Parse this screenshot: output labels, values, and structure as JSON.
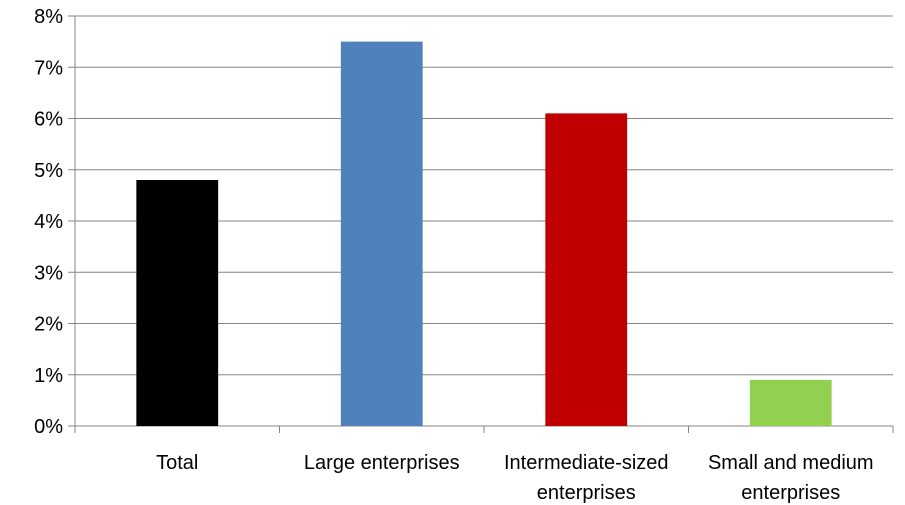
{
  "chart_data": {
    "type": "bar",
    "categories": [
      [
        "Total"
      ],
      [
        "Large enterprises"
      ],
      [
        "Intermediate-sized",
        "enterprises"
      ],
      [
        "Small and medium",
        "enterprises"
      ]
    ],
    "values": [
      4.8,
      7.5,
      6.1,
      0.9
    ],
    "colors": [
      "#000000",
      "#4F81BD",
      "#C00000",
      "#92D050"
    ],
    "yticks": [
      "0%",
      "1%",
      "2%",
      "3%",
      "4%",
      "5%",
      "6%",
      "7%",
      "8%"
    ],
    "ylim": [
      0,
      8
    ],
    "grid": true,
    "legend": "none"
  }
}
